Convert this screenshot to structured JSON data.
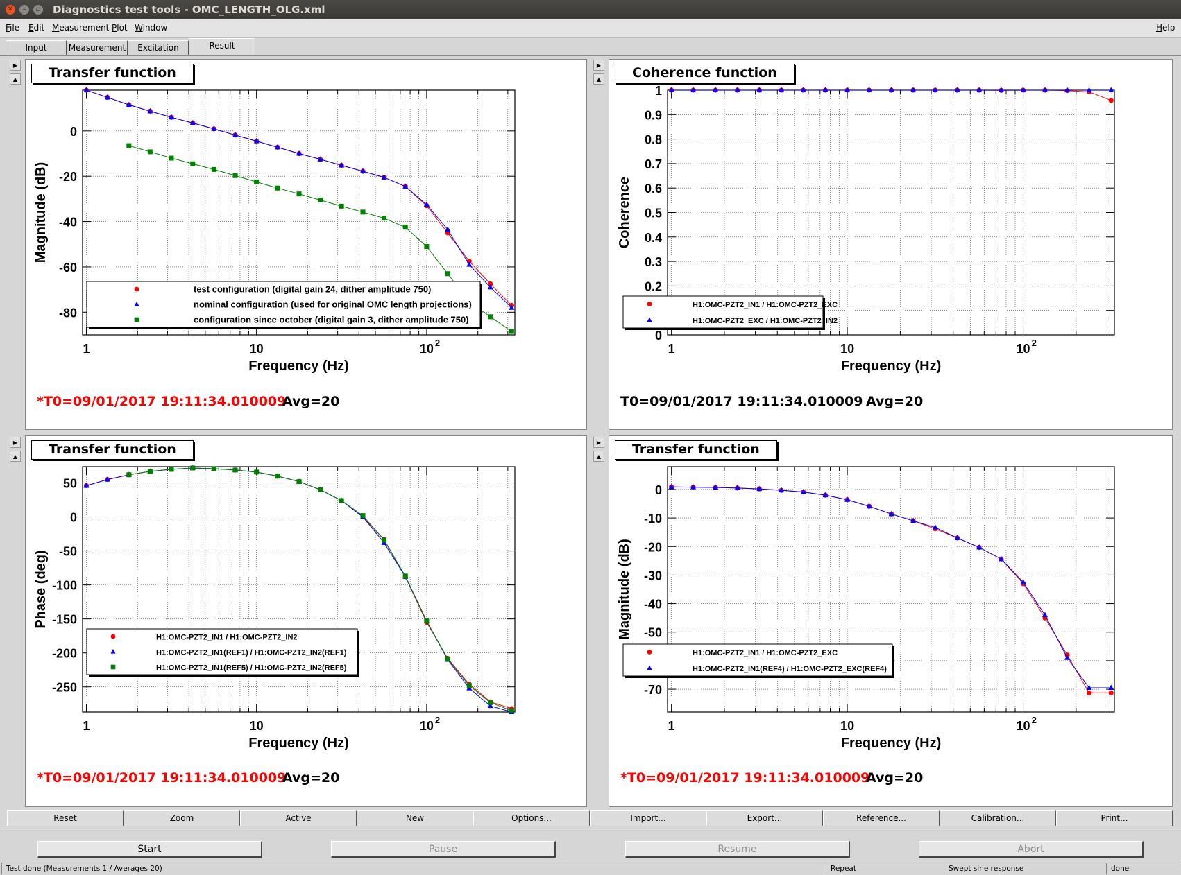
{
  "window": {
    "title": "Diagnostics test tools - OMC_LENGTH_OLG.xml"
  },
  "menubar": {
    "items": [
      "File",
      "Edit",
      "Measurement",
      "Plot",
      "Window"
    ],
    "help": "Help"
  },
  "tabs": [
    {
      "label": "Input"
    },
    {
      "label": "Measurement"
    },
    {
      "label": "Excitation"
    },
    {
      "label": "Result"
    }
  ],
  "panels": [
    {
      "title": "Transfer function",
      "t0": "*T0=09/01/2017 19:11:34.010009",
      "t0_color": "#ff0000",
      "avg": "Avg=20",
      "legend": [
        "test configuration (digital gain 24, dither amplitude 750)",
        "nominal configuration (used for original OMC length projections)",
        "configuration since october (digital gain 3, dither amplitude 750)"
      ]
    },
    {
      "title": "Coherence function",
      "t0": "T0=09/01/2017 19:11:34.010009",
      "t0_color": "#000000",
      "avg": "Avg=20",
      "legend": [
        "H1:OMC-PZT2_IN1 / H1:OMC-PZT2_EXC",
        "H1:OMC-PZT2_EXC / H1:OMC-PZT2_IN2"
      ]
    },
    {
      "title": "Transfer function",
      "t0": "*T0=09/01/2017 19:11:34.010009",
      "t0_color": "#ff0000",
      "avg": "Avg=20",
      "legend": [
        "H1:OMC-PZT2_IN1 / H1:OMC-PZT2_IN2",
        "H1:OMC-PZT2_IN1(REF1) / H1:OMC-PZT2_IN2(REF1)",
        "H1:OMC-PZT2_IN1(REF5) / H1:OMC-PZT2_IN2(REF5)"
      ]
    },
    {
      "title": "Transfer function",
      "t0": "*T0=09/01/2017 19:11:34.010009",
      "t0_color": "#ff0000",
      "avg": "Avg=20",
      "legend": [
        "H1:OMC-PZT2_IN1 / H1:OMC-PZT2_EXC",
        "H1:OMC-PZT2_IN1(REF4) / H1:OMC-PZT2_EXC(REF4)"
      ]
    }
  ],
  "chart_data": [
    {
      "type": "scatter",
      "xscale": "log",
      "xlabel": "Frequency (Hz)",
      "ylabel": "Magnitude (dB)",
      "xlim": [
        0.95,
        330
      ],
      "ylim": [
        -90,
        18
      ],
      "yticks": [
        0,
        -20,
        -40,
        -60,
        -80
      ],
      "grid": true,
      "legend_position": "bottom-center",
      "series": [
        {
          "name": "test configuration (digital gain 24, dither amplitude 750)",
          "color": "#ff0000",
          "marker": "circle",
          "x": [
            1,
            1.33,
            1.78,
            2.37,
            3.16,
            4.22,
            5.62,
            7.5,
            10,
            13.3,
            17.8,
            23.7,
            31.6,
            42.2,
            56.2,
            75,
            100,
            133,
            178,
            237,
            316
          ],
          "y": [
            18,
            14.8,
            11.5,
            8.7,
            6,
            3.5,
            0.9,
            -1.8,
            -4.5,
            -7.2,
            -10,
            -12.5,
            -15.2,
            -17.8,
            -20.5,
            -24.5,
            -33,
            -45,
            -57.5,
            -67.5,
            -77
          ]
        },
        {
          "name": "nominal configuration (used for original OMC length projections)",
          "color": "#0000ff",
          "marker": "triangle",
          "x": [
            1,
            1.33,
            1.78,
            2.37,
            3.16,
            4.22,
            5.62,
            7.5,
            10,
            13.3,
            17.8,
            23.7,
            31.6,
            42.2,
            56.2,
            75,
            100,
            133,
            178,
            237,
            316
          ],
          "y": [
            18,
            14.8,
            11.5,
            8.7,
            6,
            3.5,
            0.9,
            -1.8,
            -4.5,
            -7.2,
            -10,
            -12.5,
            -15.2,
            -17.8,
            -20.5,
            -24.5,
            -32.5,
            -43.5,
            -59,
            -69,
            -78
          ]
        },
        {
          "name": "configuration since october (digital gain 3, dither amplitude 750)",
          "color": "#008000",
          "marker": "square",
          "x": [
            1.78,
            2.37,
            3.16,
            4.22,
            5.62,
            7.5,
            10,
            13.3,
            17.8,
            23.7,
            31.6,
            42.2,
            56.2,
            75,
            100,
            133,
            178,
            237,
            316
          ],
          "y": [
            -6.5,
            -9.2,
            -12,
            -14.5,
            -17,
            -19.7,
            -22.5,
            -25.2,
            -27.8,
            -30.5,
            -33.2,
            -35.8,
            -38.5,
            -42.5,
            -51,
            -63,
            -75.5,
            -82,
            -88.5
          ]
        }
      ]
    },
    {
      "type": "scatter",
      "xscale": "log",
      "xlabel": "Frequency (Hz)",
      "ylabel": "Coherence",
      "xlim": [
        0.95,
        330
      ],
      "ylim": [
        0,
        1
      ],
      "yticks": [
        0,
        0.1,
        0.2,
        0.3,
        0.4,
        0.5,
        0.6,
        0.7,
        0.8,
        0.9,
        1
      ],
      "grid": true,
      "legend_position": "bottom-left",
      "series": [
        {
          "name": "H1:OMC-PZT2_IN1 / H1:OMC-PZT2_EXC",
          "color": "#ff0000",
          "marker": "circle",
          "x": [
            1,
            1.33,
            1.78,
            2.37,
            3.16,
            4.22,
            5.62,
            7.5,
            10,
            13.3,
            17.8,
            23.7,
            31.6,
            42.2,
            56.2,
            75,
            100,
            133,
            178,
            237,
            316
          ],
          "y": [
            1,
            1,
            1,
            1,
            1,
            1,
            1,
            1,
            1,
            1,
            1,
            1,
            1,
            1,
            1,
            0.999,
            1,
            1,
            0.998,
            0.993,
            0.958
          ]
        },
        {
          "name": "H1:OMC-PZT2_EXC / H1:OMC-PZT2_IN2",
          "color": "#0000ff",
          "marker": "triangle",
          "x": [
            1,
            1.33,
            1.78,
            2.37,
            3.16,
            4.22,
            5.62,
            7.5,
            10,
            13.3,
            17.8,
            23.7,
            31.6,
            42.2,
            56.2,
            75,
            100,
            133,
            178,
            237,
            316
          ],
          "y": [
            1,
            1,
            1,
            1,
            1,
            1,
            1,
            1,
            1,
            1,
            1,
            1,
            1,
            1,
            1,
            1,
            1,
            1,
            1,
            1,
            1
          ]
        }
      ]
    },
    {
      "type": "scatter",
      "xscale": "log",
      "xlabel": "Frequency (Hz)",
      "ylabel": "Phase (deg)",
      "xlim": [
        0.95,
        330
      ],
      "ylim": [
        -287,
        74
      ],
      "yticks": [
        50,
        0,
        -50,
        -100,
        -150,
        -200,
        -250
      ],
      "grid": true,
      "legend_position": "bottom-left",
      "series": [
        {
          "name": "H1:OMC-PZT2_IN1 / H1:OMC-PZT2_IN2",
          "color": "#ff0000",
          "marker": "circle",
          "x": [
            1,
            1.33,
            1.78,
            2.37,
            3.16,
            4.22,
            5.62,
            7.5,
            10,
            13.3,
            17.8,
            23.7,
            31.6,
            42.2,
            56.2,
            75,
            100,
            133,
            178,
            237,
            316
          ],
          "y": [
            46,
            55,
            62,
            67,
            70,
            72,
            71,
            69,
            66,
            60,
            52,
            40,
            24,
            0,
            -33,
            -88,
            -155,
            -208,
            -246,
            -272,
            -282
          ]
        },
        {
          "name": "H1:OMC-PZT2_IN1(REF1) / H1:OMC-PZT2_IN2(REF1)",
          "color": "#0000ff",
          "marker": "triangle",
          "x": [
            1,
            1.33,
            1.78,
            2.37,
            3.16,
            4.22,
            5.62,
            7.5,
            10,
            13.3,
            17.8,
            23.7,
            31.6,
            42.2,
            56.2,
            75,
            100,
            133,
            178,
            237,
            316
          ],
          "y": [
            46,
            55,
            62,
            67,
            70,
            72,
            71,
            69,
            66,
            60,
            52,
            40,
            24,
            0,
            -38,
            -88,
            -153,
            -210,
            -252,
            -278,
            -287
          ]
        },
        {
          "name": "H1:OMC-PZT2_IN1(REF5) / H1:OMC-PZT2_IN2(REF5)",
          "color": "#008000",
          "marker": "square",
          "x": [
            1.78,
            2.37,
            3.16,
            4.22,
            5.62,
            7.5,
            10,
            13.3,
            17.8,
            23.7,
            31.6,
            42.2,
            56.2,
            75,
            100,
            133,
            178,
            237,
            316
          ],
          "y": [
            62,
            67,
            70,
            72,
            71,
            69,
            66,
            60,
            52,
            40,
            24,
            2,
            -34,
            -87,
            -153,
            -209,
            -248,
            -273,
            -285
          ]
        }
      ]
    },
    {
      "type": "scatter",
      "xscale": "log",
      "xlabel": "Frequency (Hz)",
      "ylabel": "Magnitude (dB)",
      "xlim": [
        0.95,
        330
      ],
      "ylim": [
        -78,
        8
      ],
      "yticks": [
        0,
        -10,
        -20,
        -30,
        -40,
        -50,
        -60,
        -70
      ],
      "grid": true,
      "legend_position": "bottom-left",
      "series": [
        {
          "name": "H1:OMC-PZT2_IN1 / H1:OMC-PZT2_EXC",
          "color": "#ff0000",
          "marker": "circle",
          "x": [
            1,
            1.33,
            1.78,
            2.37,
            3.16,
            4.22,
            5.62,
            7.5,
            10,
            13.3,
            17.8,
            23.7,
            31.6,
            42.2,
            56.2,
            75,
            100,
            133,
            178,
            237,
            316
          ],
          "y": [
            0.9,
            0.8,
            0.7,
            0.5,
            0.2,
            -0.3,
            -0.9,
            -2,
            -3.6,
            -5.9,
            -8.6,
            -11,
            -13.8,
            -17,
            -20.3,
            -24.4,
            -33,
            -45,
            -58,
            -71.3,
            -71.3
          ]
        },
        {
          "name": "H1:OMC-PZT2_IN1(REF4) / H1:OMC-PZT2_EXC(REF4)",
          "color": "#0000ff",
          "marker": "triangle",
          "x": [
            1,
            1.33,
            1.78,
            2.37,
            3.16,
            4.22,
            5.62,
            7.5,
            10,
            13.3,
            17.8,
            23.7,
            31.6,
            42.2,
            56.2,
            75,
            100,
            133,
            178,
            237,
            316
          ],
          "y": [
            0.9,
            0.8,
            0.7,
            0.5,
            0.2,
            -0.3,
            -0.9,
            -2,
            -3.6,
            -5.9,
            -8.6,
            -11,
            -13.3,
            -17,
            -20.3,
            -24.4,
            -32.5,
            -44,
            -59,
            -69.5,
            -69.5
          ]
        }
      ]
    }
  ],
  "bottom_buttons": [
    "Reset",
    "Zoom",
    "Active",
    "New",
    "Options...",
    "Import...",
    "Export...",
    "Reference...",
    "Calibration...",
    "Print..."
  ],
  "controls": [
    {
      "label": "Start",
      "enabled": true
    },
    {
      "label": "Pause",
      "enabled": false
    },
    {
      "label": "Resume",
      "enabled": false
    },
    {
      "label": "Abort",
      "enabled": false
    }
  ],
  "status": [
    "Test done (Measurements 1 / Averages 20)",
    "Repeat",
    "Swept sine response",
    "done"
  ]
}
